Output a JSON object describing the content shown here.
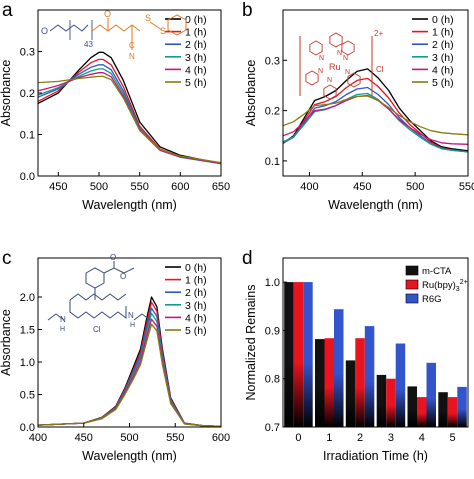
{
  "panels": [
    {
      "letter": "a",
      "chart_data": {
        "type": "line",
        "xlabel": "Wavelength (nm)",
        "ylabel": "Absorbance",
        "xlim": [
          425,
          650
        ],
        "ylim": [
          0.0,
          0.4
        ],
        "xticks": [
          450,
          500,
          550,
          600,
          650
        ],
        "yticks": [
          0.0,
          0.1,
          0.2,
          0.3
        ],
        "legend": [
          "0 (h)",
          "1 (h)",
          "2 (h)",
          "3 (h)",
          "4 (h)",
          "5 (h)"
        ],
        "legend_position": "top-right",
        "series": [
          {
            "name": "0 (h)",
            "color": "#000000",
            "x": [
              425,
              450,
              475,
              490,
              500,
              505,
              515,
              530,
              550,
              575,
              600,
              650
            ],
            "y": [
              0.175,
              0.2,
              0.255,
              0.285,
              0.298,
              0.298,
              0.285,
              0.23,
              0.13,
              0.07,
              0.05,
              0.03
            ]
          },
          {
            "name": "1 (h)",
            "color": "#e8141f",
            "x": [
              425,
              450,
              475,
              490,
              500,
              505,
              515,
              530,
              550,
              575,
              600,
              650
            ],
            "y": [
              0.18,
              0.205,
              0.25,
              0.273,
              0.281,
              0.281,
              0.268,
              0.215,
              0.12,
              0.065,
              0.047,
              0.03
            ]
          },
          {
            "name": "2 (h)",
            "color": "#3355cc",
            "x": [
              425,
              450,
              475,
              490,
              500,
              505,
              515,
              530,
              550,
              575,
              600,
              650
            ],
            "y": [
              0.19,
              0.21,
              0.245,
              0.262,
              0.268,
              0.268,
              0.256,
              0.205,
              0.115,
              0.063,
              0.046,
              0.03
            ]
          },
          {
            "name": "3 (h)",
            "color": "#0f9d8a",
            "x": [
              425,
              450,
              475,
              490,
              500,
              505,
              515,
              530,
              550,
              575,
              600,
              650
            ],
            "y": [
              0.195,
              0.213,
              0.24,
              0.253,
              0.258,
              0.258,
              0.247,
              0.198,
              0.112,
              0.062,
              0.045,
              0.03
            ]
          },
          {
            "name": "4 (h)",
            "color": "#c2187a",
            "x": [
              425,
              450,
              475,
              490,
              500,
              505,
              515,
              530,
              550,
              575,
              600,
              650
            ],
            "y": [
              0.205,
              0.218,
              0.237,
              0.245,
              0.249,
              0.249,
              0.239,
              0.192,
              0.11,
              0.062,
              0.046,
              0.03
            ]
          },
          {
            "name": "5 (h)",
            "color": "#8a7a10",
            "x": [
              425,
              450,
              475,
              490,
              500,
              505,
              515,
              530,
              550,
              575,
              600,
              650
            ],
            "y": [
              0.225,
              0.228,
              0.235,
              0.238,
              0.24,
              0.24,
              0.232,
              0.188,
              0.11,
              0.064,
              0.048,
              0.032
            ]
          }
        ]
      },
      "structure_labels": [
        "O",
        "43",
        "O",
        "S",
        "S",
        "C",
        "N"
      ]
    },
    {
      "letter": "b",
      "chart_data": {
        "type": "line",
        "xlabel": "Wavelength (nm)",
        "ylabel": "Absorbance",
        "xlim": [
          375,
          550
        ],
        "ylim": [
          0.07,
          0.4
        ],
        "xticks": [
          400,
          450,
          500,
          550
        ],
        "yticks": [
          0.1,
          0.2,
          0.3
        ],
        "legend": [
          "0 (h)",
          "1 (h)",
          "2 (h)",
          "3 (h)",
          "4 (h)",
          "5 (h)"
        ],
        "legend_position": "top-right",
        "series": [
          {
            "name": "0 (h)",
            "color": "#000000",
            "x": [
              375,
              385,
              395,
              405,
              415,
              425,
              435,
              445,
              455,
              465,
              475,
              485,
              495,
              505,
              515,
              525,
              535,
              550
            ],
            "y": [
              0.135,
              0.15,
              0.185,
              0.22,
              0.228,
              0.24,
              0.26,
              0.278,
              0.283,
              0.265,
              0.24,
              0.205,
              0.18,
              0.16,
              0.14,
              0.128,
              0.124,
              0.12
            ]
          },
          {
            "name": "1 (h)",
            "color": "#e8141f",
            "x": [
              375,
              385,
              395,
              405,
              415,
              425,
              435,
              445,
              455,
              465,
              475,
              485,
              495,
              505,
              515,
              525,
              535,
              550
            ],
            "y": [
              0.135,
              0.148,
              0.18,
              0.212,
              0.218,
              0.228,
              0.246,
              0.26,
              0.264,
              0.248,
              0.225,
              0.195,
              0.172,
              0.155,
              0.137,
              0.126,
              0.122,
              0.118
            ]
          },
          {
            "name": "2 (h)",
            "color": "#3355cc",
            "x": [
              375,
              385,
              395,
              405,
              415,
              425,
              435,
              445,
              455,
              465,
              475,
              485,
              495,
              505,
              515,
              525,
              535,
              550
            ],
            "y": [
              0.136,
              0.147,
              0.175,
              0.205,
              0.21,
              0.218,
              0.232,
              0.243,
              0.246,
              0.232,
              0.212,
              0.186,
              0.166,
              0.15,
              0.134,
              0.125,
              0.121,
              0.118
            ]
          },
          {
            "name": "3 (h)",
            "color": "#0f9d8a",
            "x": [
              375,
              385,
              395,
              405,
              415,
              425,
              435,
              445,
              455,
              465,
              475,
              485,
              495,
              505,
              515,
              525,
              535,
              550
            ],
            "y": [
              0.138,
              0.148,
              0.172,
              0.198,
              0.202,
              0.21,
              0.222,
              0.232,
              0.234,
              0.222,
              0.203,
              0.18,
              0.162,
              0.147,
              0.133,
              0.124,
              0.121,
              0.118
            ]
          },
          {
            "name": "4 (h)",
            "color": "#c2187a",
            "x": [
              375,
              385,
              395,
              405,
              415,
              425,
              435,
              445,
              455,
              465,
              475,
              485,
              495,
              505,
              515,
              525,
              535,
              550
            ],
            "y": [
              0.15,
              0.158,
              0.178,
              0.2,
              0.203,
              0.21,
              0.22,
              0.228,
              0.23,
              0.22,
              0.203,
              0.182,
              0.166,
              0.153,
              0.142,
              0.136,
              0.134,
              0.133
            ]
          },
          {
            "name": "5 (h)",
            "color": "#8a7a10",
            "x": [
              375,
              385,
              395,
              405,
              415,
              425,
              435,
              445,
              455,
              465,
              475,
              485,
              495,
              505,
              515,
              525,
              535,
              550
            ],
            "y": [
              0.17,
              0.178,
              0.193,
              0.21,
              0.212,
              0.215,
              0.222,
              0.228,
              0.229,
              0.22,
              0.206,
              0.19,
              0.178,
              0.168,
              0.16,
              0.156,
              0.154,
              0.152
            ]
          }
        ]
      },
      "structure_labels": [
        "Ru",
        "2+",
        "Cl",
        "N",
        "N",
        "N",
        "N",
        "N",
        "N"
      ]
    },
    {
      "letter": "c",
      "chart_data": {
        "type": "line",
        "xlabel": "Wavelength (nm)",
        "ylabel": "Absorbance",
        "xlim": [
          400,
          600
        ],
        "ylim": [
          0.0,
          2.6
        ],
        "xticks": [
          400,
          450,
          500,
          550,
          600
        ],
        "yticks": [
          0.0,
          0.5,
          1.0,
          1.5,
          2.0
        ],
        "legend": [
          "0 (h)",
          "1 (h)",
          "2 (h)",
          "3 (h)",
          "4 (h)",
          "5 (h)"
        ],
        "legend_position": "top-right",
        "series": [
          {
            "name": "0 (h)",
            "color": "#000000",
            "x": [
              400,
              450,
              470,
              485,
              495,
              505,
              512,
              518,
              524,
              530,
              536,
              545,
              560,
              580,
              600
            ],
            "y": [
              0.03,
              0.06,
              0.15,
              0.32,
              0.6,
              0.95,
              1.2,
              1.62,
              2.0,
              1.85,
              1.2,
              0.45,
              0.06,
              0.02,
              0.01
            ]
          },
          {
            "name": "1 (h)",
            "color": "#e8141f",
            "x": [
              400,
              450,
              470,
              485,
              495,
              505,
              512,
              518,
              524,
              530,
              536,
              545,
              560,
              580,
              600
            ],
            "y": [
              0.03,
              0.06,
              0.15,
              0.31,
              0.58,
              0.91,
              1.15,
              1.55,
              1.92,
              1.78,
              1.15,
              0.43,
              0.06,
              0.02,
              0.01
            ]
          },
          {
            "name": "2 (h)",
            "color": "#3355cc",
            "x": [
              400,
              450,
              470,
              485,
              495,
              505,
              512,
              518,
              524,
              530,
              536,
              545,
              560,
              580,
              600
            ],
            "y": [
              0.03,
              0.06,
              0.14,
              0.3,
              0.56,
              0.88,
              1.1,
              1.48,
              1.83,
              1.7,
              1.1,
              0.41,
              0.06,
              0.02,
              0.01
            ]
          },
          {
            "name": "3 (h)",
            "color": "#0f9d8a",
            "x": [
              400,
              450,
              470,
              485,
              495,
              505,
              512,
              518,
              524,
              530,
              536,
              545,
              560,
              580,
              600
            ],
            "y": [
              0.03,
              0.06,
              0.14,
              0.29,
              0.54,
              0.84,
              1.06,
              1.42,
              1.75,
              1.62,
              1.05,
              0.39,
              0.05,
              0.02,
              0.01
            ]
          },
          {
            "name": "4 (h)",
            "color": "#c2187a",
            "x": [
              400,
              450,
              470,
              485,
              495,
              505,
              512,
              518,
              524,
              530,
              536,
              545,
              560,
              580,
              600
            ],
            "y": [
              0.03,
              0.06,
              0.13,
              0.28,
              0.52,
              0.8,
              1.01,
              1.35,
              1.66,
              1.55,
              1.0,
              0.37,
              0.05,
              0.02,
              0.01
            ]
          },
          {
            "name": "5 (h)",
            "color": "#8a7a10",
            "x": [
              400,
              450,
              470,
              485,
              495,
              505,
              512,
              518,
              524,
              530,
              536,
              545,
              560,
              580,
              600
            ],
            "y": [
              0.03,
              0.06,
              0.13,
              0.27,
              0.5,
              0.76,
              0.96,
              1.28,
              1.58,
              1.48,
              0.96,
              0.36,
              0.05,
              0.02,
              0.01
            ]
          }
        ]
      },
      "structure_labels": [
        "O",
        "O",
        "N",
        "N",
        "H",
        "H",
        "Cl"
      ]
    },
    {
      "letter": "d",
      "chart_data": {
        "type": "bar",
        "xlabel": "Irradiation Time (h)",
        "ylabel": "Normalized Remains",
        "categories": [
          "0",
          "1",
          "2",
          "3",
          "4",
          "5"
        ],
        "ylim": [
          0.7,
          1.05
        ],
        "yticks": [
          0.7,
          0.8,
          0.9,
          1.0
        ],
        "legend_position": "top-right",
        "series": [
          {
            "name": "m-CTA",
            "color": "#111111",
            "values": [
              1.0,
              0.882,
              0.838,
              0.808,
              0.784,
              0.772
            ]
          },
          {
            "name": "Ru(bpy)3 2+",
            "color": "#e8141f",
            "values": [
              1.0,
              0.884,
              0.884,
              0.8,
              0.762,
              0.762
            ]
          },
          {
            "name": "R6G",
            "color": "#3355cc",
            "values": [
              1.0,
              0.944,
              0.909,
              0.873,
              0.833,
              0.783
            ]
          }
        ]
      },
      "legend_labels": {
        "mcta": "m-CTA",
        "ru_main": "Ru(bpy)",
        "ru_sub": "3",
        "ru_sup": "2+",
        "r6g": "R6G"
      }
    }
  ]
}
